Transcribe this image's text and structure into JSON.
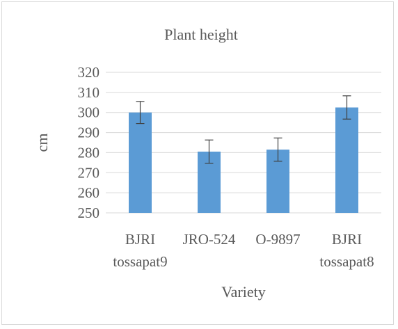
{
  "chart_data": {
    "type": "bar",
    "title": "Plant height",
    "xlabel": "Variety",
    "ylabel": "cm",
    "categories": [
      [
        "BJRI",
        "tossapat9"
      ],
      [
        "JRO-524"
      ],
      [
        "O-9897"
      ],
      [
        "BJRI",
        "tossapat8"
      ]
    ],
    "values": [
      300,
      280.5,
      281.5,
      302.5
    ],
    "error": [
      5.5,
      5.8,
      5.8,
      5.8
    ],
    "ylim": [
      250,
      320
    ],
    "yticks": [
      250,
      260,
      270,
      280,
      290,
      300,
      310,
      320
    ],
    "grid": true,
    "bar_color": "#5b9bd5",
    "grid_color": "#d9d9d9",
    "text_color": "#595959"
  }
}
